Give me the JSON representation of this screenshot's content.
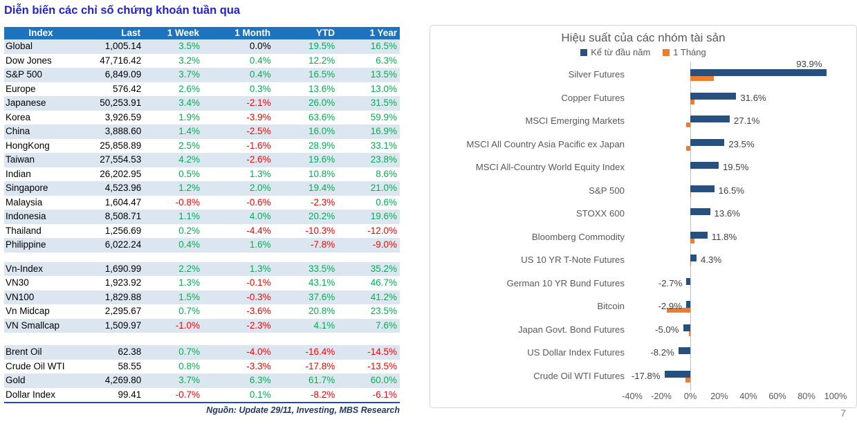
{
  "page": {
    "title": "Diễn biến các chỉ số chứng khoán tuần qua",
    "page_number": "7"
  },
  "colors": {
    "header_bg": "#1E73BE",
    "row_stripe": "#DCE6F1",
    "positive": "#00B050",
    "negative": "#FF0000",
    "title_blue": "#2424CC",
    "source_navy": "#1F3864",
    "bar_blue": "#26507E",
    "bar_orange": "#ED7D31"
  },
  "table": {
    "columns": [
      "Index",
      "Last",
      "1 Week",
      "1 Month",
      "YTD",
      "1 Year"
    ],
    "source": "Nguồn: Update 29/11, Investing, MBS Research",
    "groups": [
      {
        "name": "global-indices",
        "rows": [
          [
            "Global",
            "1,005.14",
            "3.5%",
            "0.0%",
            "19.5%",
            "16.5%"
          ],
          [
            "Dow Jones",
            "47,716.42",
            "3.2%",
            "0.4%",
            "12.2%",
            "6.3%"
          ],
          [
            "S&P 500",
            "6,849.09",
            "3.7%",
            "0.4%",
            "16.5%",
            "13.5%"
          ],
          [
            "Europe",
            "576.42",
            "2.6%",
            "0.3%",
            "13.6%",
            "13.0%"
          ],
          [
            "Japanese",
            "50,253.91",
            "3.4%",
            "-2.1%",
            "26.0%",
            "31.5%"
          ],
          [
            "Korea",
            "3,926.59",
            "1.9%",
            "-3.9%",
            "63.6%",
            "59.9%"
          ],
          [
            "China",
            "3,888.60",
            "1.4%",
            "-2.5%",
            "16.0%",
            "16.9%"
          ],
          [
            "HongKong",
            "25,858.89",
            "2.5%",
            "-1.6%",
            "28.9%",
            "33.1%"
          ],
          [
            "Taiwan",
            "27,554.53",
            "4.2%",
            "-2.6%",
            "19.6%",
            "23.8%"
          ],
          [
            "Indian",
            "26,202.95",
            "0.5%",
            "1.3%",
            "10.8%",
            "8.6%"
          ],
          [
            "Singapore",
            "4,523.96",
            "1.2%",
            "2.0%",
            "19.4%",
            "21.0%"
          ],
          [
            "Malaysia",
            "1,604.47",
            "-0.8%",
            "-0.6%",
            "-2.3%",
            "0.6%"
          ],
          [
            "Indonesia",
            "8,508.71",
            "1.1%",
            "4.0%",
            "20.2%",
            "19.6%"
          ],
          [
            "Thailand",
            "1,256.69",
            "0.2%",
            "-4.4%",
            "-10.3%",
            "-12.0%"
          ],
          [
            "Philippine",
            "6,022.24",
            "0.4%",
            "1.6%",
            "-7.8%",
            "-9.0%"
          ]
        ]
      },
      {
        "name": "vietnam-indices",
        "rows": [
          [
            "Vn-Index",
            "1,690.99",
            "2.2%",
            "1.3%",
            "33.5%",
            "35.2%"
          ],
          [
            "VN30",
            "1,923.92",
            "1.3%",
            "-0.1%",
            "43.1%",
            "46.7%"
          ],
          [
            "VN100",
            "1,829.88",
            "1.5%",
            "-0.3%",
            "37.6%",
            "41.2%"
          ],
          [
            "Vn Midcap",
            "2,295.67",
            "0.7%",
            "-3.6%",
            "20.8%",
            "23.5%"
          ],
          [
            "VN Smallcap",
            "1,509.97",
            "-1.0%",
            "-2.3%",
            "4.1%",
            "7.6%"
          ]
        ]
      },
      {
        "name": "commodities-fx",
        "rows": [
          [
            "Brent Oil",
            "62.38",
            "0.7%",
            "-4.0%",
            "-16.4%",
            "-14.5%"
          ],
          [
            "Crude Oil WTI",
            "58.55",
            "0.8%",
            "-3.3%",
            "-17.8%",
            "-13.5%"
          ],
          [
            "Gold",
            "4,269.80",
            "3.7%",
            "6.3%",
            "61.7%",
            "60.0%"
          ],
          [
            "Dollar Index",
            "99.41",
            "-0.7%",
            "0.1%",
            "-8.2%",
            "-6.1%"
          ]
        ]
      }
    ]
  },
  "chart_data": {
    "type": "bar",
    "orientation": "horizontal",
    "title": "Hiệu suất của các nhóm tài sản",
    "legend_position": "top",
    "grid": false,
    "categories": [
      "Silver Futures",
      "Copper Futures",
      "MSCI Emerging Markets",
      "MSCI All Country Asia Pacific ex Japan",
      "MSCI All-Country World Equity Index",
      "S&P 500",
      "STOXX 600",
      "Bloomberg Commodity",
      "US 10 YR T-Note Futures",
      "German 10 YR Bund Futures",
      "Bitcoin",
      "Japan Govt. Bond Futures",
      "US Dollar Index Futures",
      "Crude Oil WTI Futures"
    ],
    "series": [
      {
        "name": "Kể từ đầu năm",
        "color": "#26507E",
        "values": [
          93.9,
          31.6,
          27.1,
          23.5,
          19.5,
          16.5,
          13.6,
          11.8,
          4.3,
          -2.7,
          -2.9,
          -5.0,
          -8.2,
          -17.8
        ],
        "labels": [
          "93.9%",
          "31.6%",
          "27.1%",
          "23.5%",
          "19.5%",
          "16.5%",
          "13.6%",
          "11.8%",
          "4.3%",
          "-2.7%",
          "-2.9%",
          "-5.0%",
          "-8.2%",
          "-17.8%"
        ]
      },
      {
        "name": "1 Tháng",
        "color": "#ED7D31",
        "values": [
          16.0,
          3.0,
          -3.0,
          -3.0,
          0.0,
          0.4,
          0.3,
          3.0,
          0.5,
          0.3,
          -16.0,
          -1.0,
          0.1,
          -3.3
        ]
      }
    ],
    "xlim": [
      -40,
      100
    ],
    "xticks": [
      "-40%",
      "-20%",
      "0%",
      "20%",
      "40%",
      "60%",
      "80%",
      "100%"
    ]
  }
}
